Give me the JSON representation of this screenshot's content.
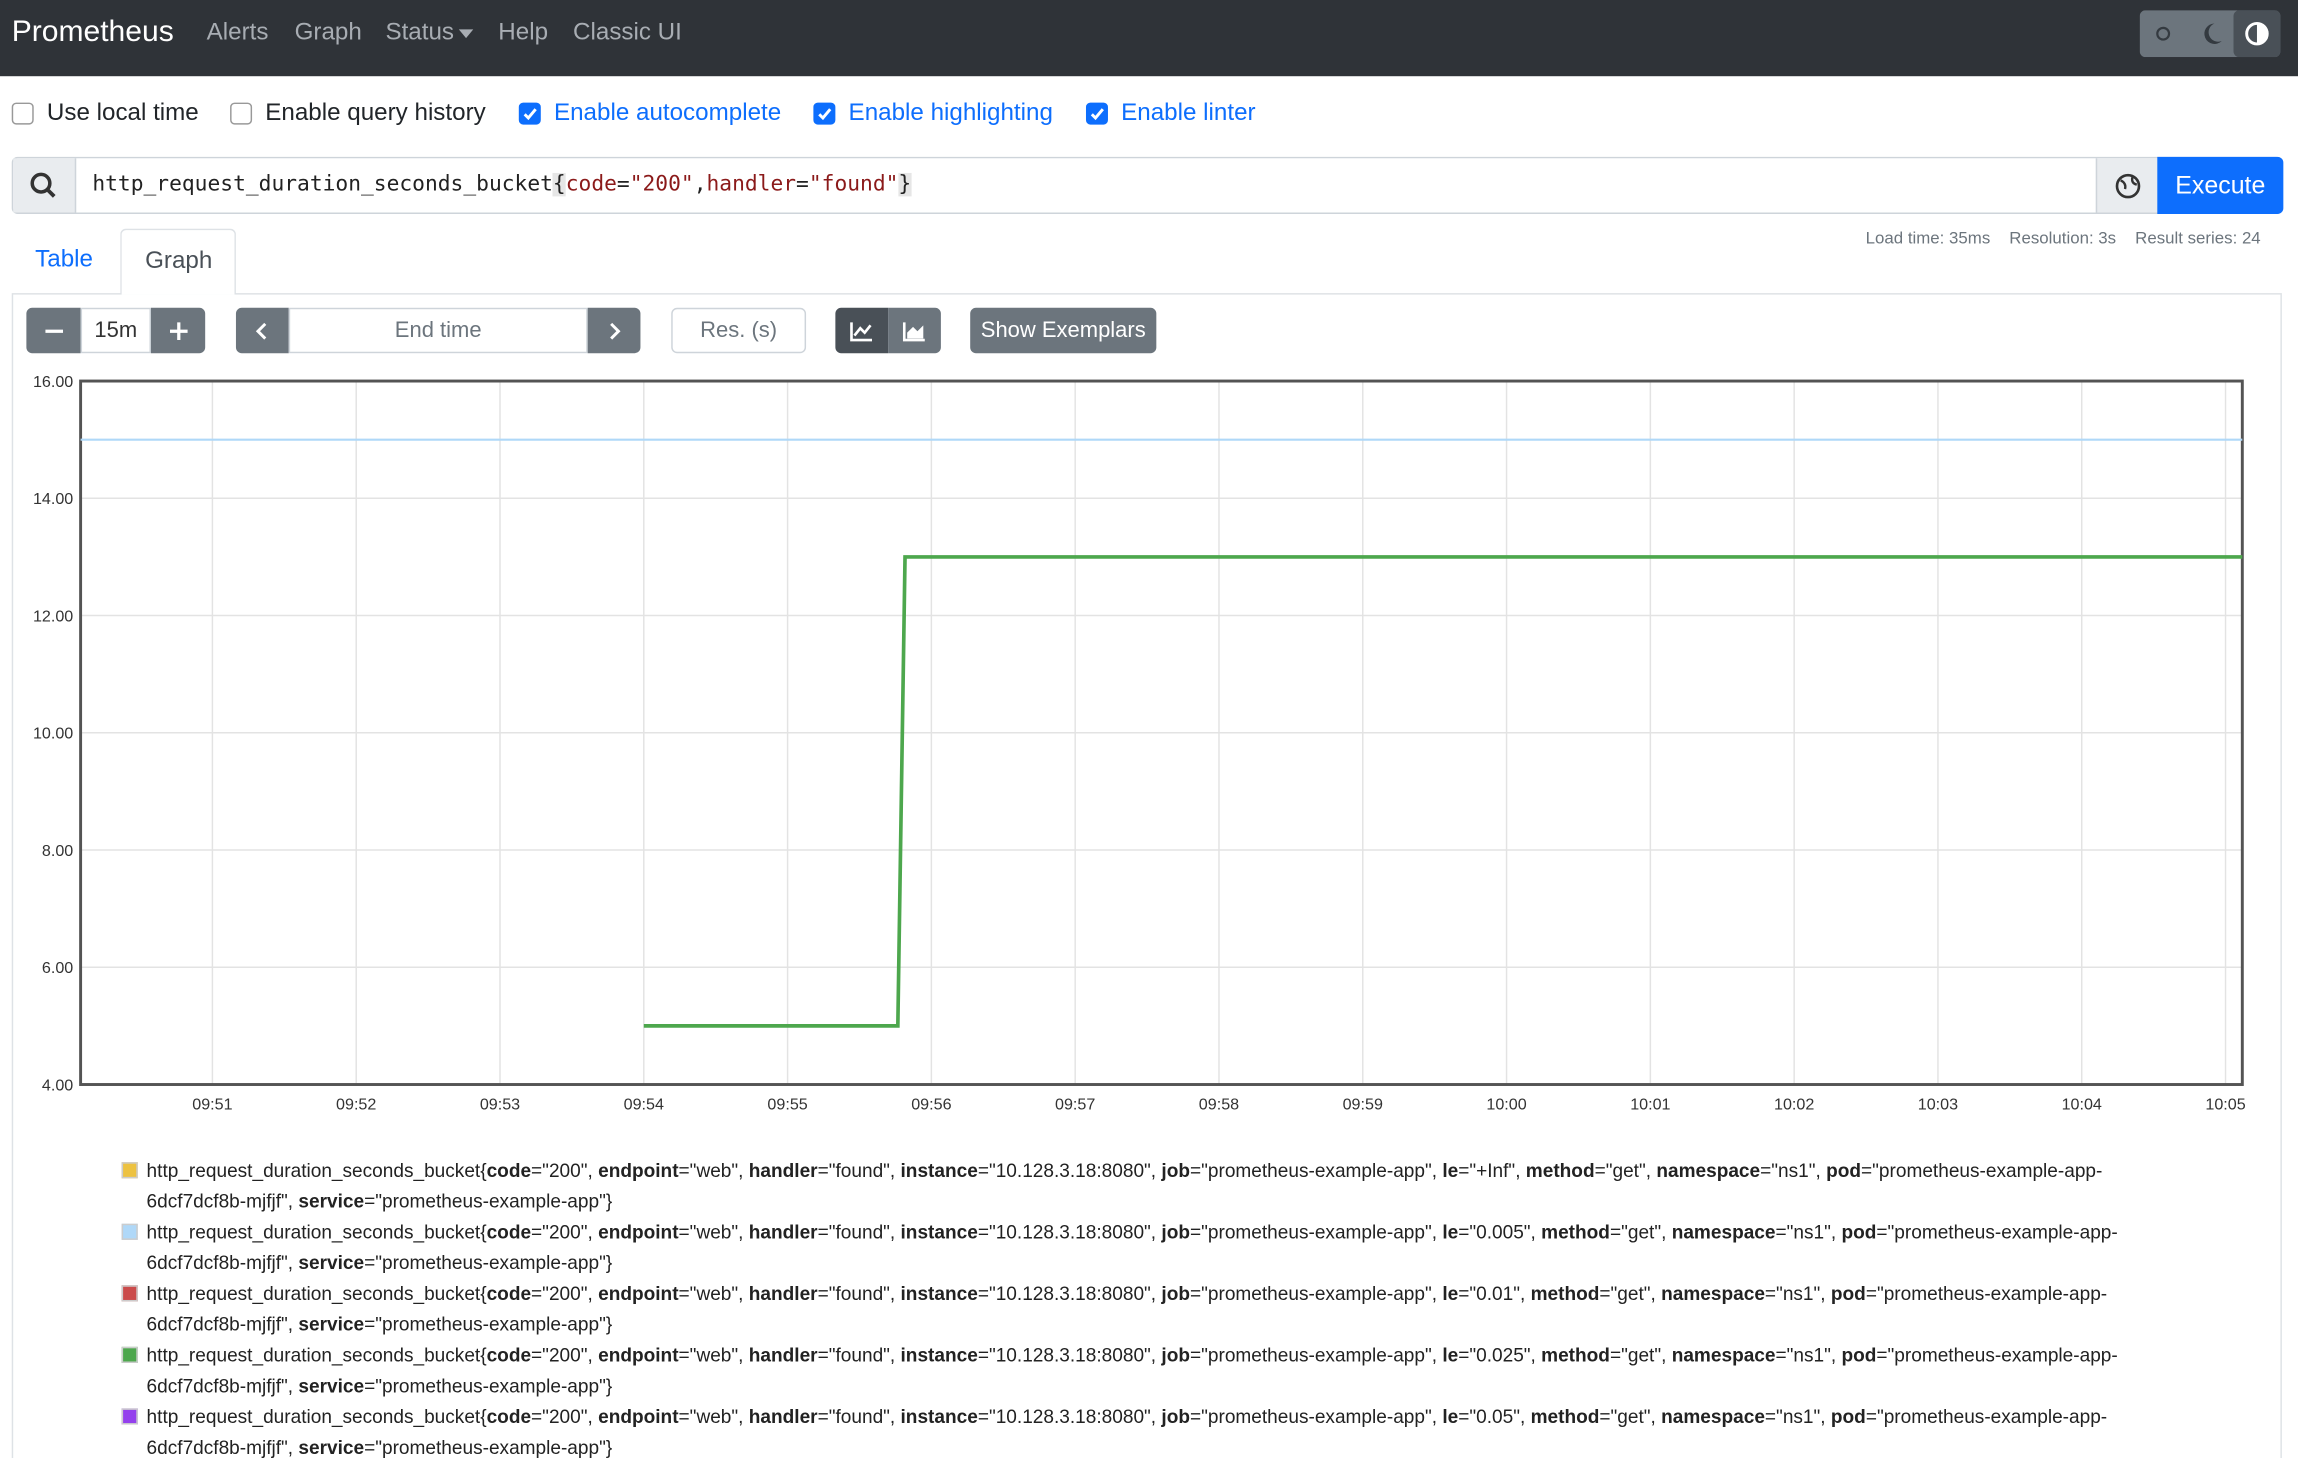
{
  "nav": {
    "brand": "Prometheus",
    "links": [
      "Alerts",
      "Graph",
      "Status",
      "Help",
      "Classic UI"
    ]
  },
  "settings": [
    {
      "label": "Use local time",
      "checked": false
    },
    {
      "label": "Enable query history",
      "checked": false
    },
    {
      "label": "Enable autocomplete",
      "checked": true
    },
    {
      "label": "Enable highlighting",
      "checked": true
    },
    {
      "label": "Enable linter",
      "checked": true
    }
  ],
  "query": {
    "parts": [
      "http_request_duration_seconds_bucket",
      "{",
      "code",
      "=",
      "\"200\"",
      ",",
      "handler",
      "=",
      "\"found\"",
      "}"
    ],
    "button": "Execute"
  },
  "tabs": [
    "Table",
    "Graph"
  ],
  "stats": [
    "Load time: 35ms",
    "Resolution: 3s",
    "Result series: 24"
  ],
  "controls": {
    "range": "15m",
    "end_time": "End time",
    "resolution": "Res. (s)",
    "exemplars": "Show Exemplars"
  },
  "chart_data": {
    "type": "line",
    "x": [
      "09:50:05",
      "09:54:00",
      "09:55:46",
      "09:55:49",
      "10:05:07"
    ],
    "xlim": [
      "09:50:05",
      "10:05:07"
    ],
    "xticks": [
      "09:51",
      "09:52",
      "09:53",
      "09:54",
      "09:55",
      "09:56",
      "09:57",
      "09:58",
      "09:59",
      "10:00",
      "10:01",
      "10:02",
      "10:03",
      "10:04",
      "10:05"
    ],
    "ylim": [
      4,
      16
    ],
    "yticks": [
      {
        "value": 4,
        "label": "4.00"
      },
      {
        "value": 6,
        "label": "6.00"
      },
      {
        "value": 8,
        "label": "8.00"
      },
      {
        "value": 10,
        "label": "10.00"
      },
      {
        "value": 12,
        "label": "12.00"
      },
      {
        "value": 14,
        "label": "14.00"
      },
      {
        "value": 16,
        "label": "16.00"
      }
    ],
    "grid": true,
    "series": [
      {
        "name": "http_request_duration_seconds_bucket{code=\"200\", endpoint=\"web\", handler=\"found\", instance=\"10.128.3.18:8080\", job=\"prometheus-example-app\", le=\"+Inf\", method=\"get\", namespace=\"ns1\", pod=\"prometheus-example-app-6dcf7dcf8b-mjfjf\", service=\"prometheus-example-app\"}",
        "color": "#edc240",
        "values": [
          null,
          null,
          null,
          null,
          null
        ]
      },
      {
        "name": "http_request_duration_seconds_bucket{code=\"200\", endpoint=\"web\", handler=\"found\", instance=\"10.128.3.18:8080\", job=\"prometheus-example-app\", le=\"0.005\", method=\"get\", namespace=\"ns1\", pod=\"prometheus-example-app-6dcf7dcf8b-mjfjf\", service=\"prometheus-example-app\"}",
        "color": "#afd8f8",
        "values": [
          15,
          15,
          15,
          15,
          15
        ]
      },
      {
        "name": "http_request_duration_seconds_bucket{code=\"200\", endpoint=\"web\", handler=\"found\", instance=\"10.128.3.18:8080\", job=\"prometheus-example-app\", le=\"0.01\", method=\"get\", namespace=\"ns1\", pod=\"prometheus-example-app-6dcf7dcf8b-mjfjf\", service=\"prometheus-example-app\"}",
        "color": "#cb4b4b",
        "values": [
          null,
          null,
          null,
          null,
          null
        ]
      },
      {
        "name": "http_request_duration_seconds_bucket{code=\"200\", endpoint=\"web\", handler=\"found\", instance=\"10.128.3.18:8080\", job=\"prometheus-example-app\", le=\"0.025\", method=\"get\", namespace=\"ns1\", pod=\"prometheus-example-app-6dcf7dcf8b-mjfjf\", service=\"prometheus-example-app\"}",
        "color": "#4da74d",
        "values": [
          null,
          5,
          5,
          13,
          13
        ]
      },
      {
        "name": "http_request_duration_seconds_bucket{code=\"200\", endpoint=\"web\", handler=\"found\", instance=\"10.128.3.18:8080\", job=\"prometheus-example-app\", le=\"0.05\", method=\"get\", namespace=\"ns1\", pod=\"prometheus-example-app-6dcf7dcf8b-mjfjf\", service=\"prometheus-example-app\"}",
        "color": "#9440ed",
        "values": [
          null,
          null,
          null,
          null,
          null
        ]
      }
    ]
  }
}
